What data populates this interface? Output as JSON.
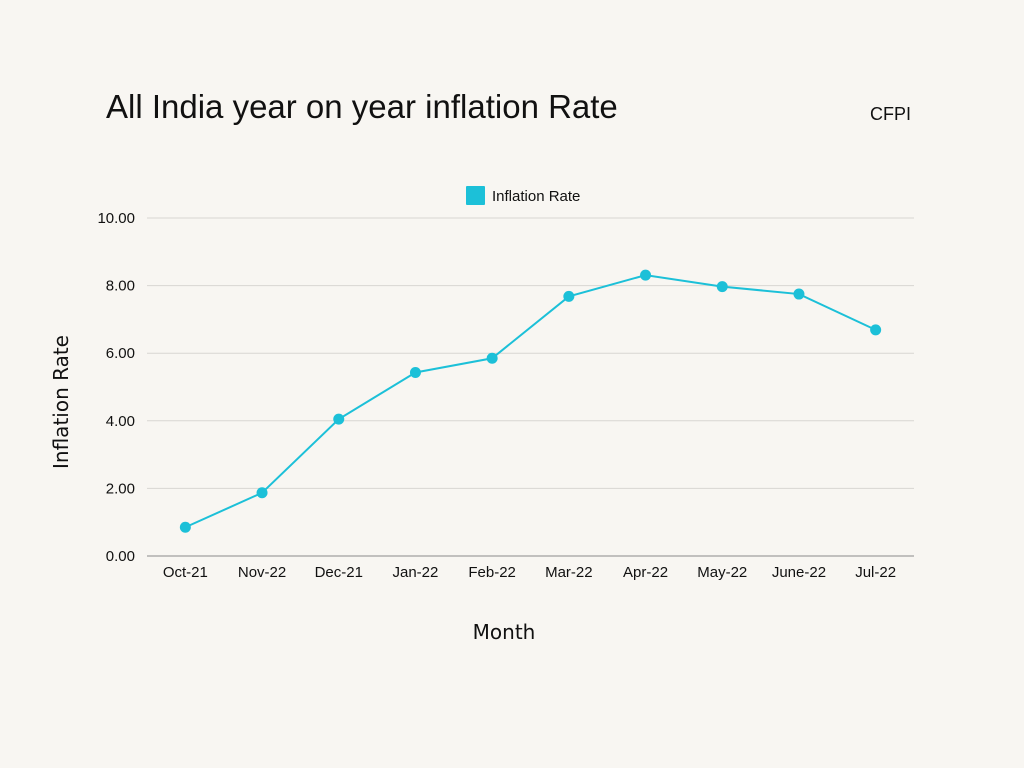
{
  "header": {
    "title": "All India year on year inflation Rate",
    "tag": "CFPI"
  },
  "colors": {
    "background": "#f8f6f2",
    "series": "#1cc0d8",
    "grid": "#d8d6d2",
    "axis": "#8a8a8a"
  },
  "chart_data": {
    "type": "line",
    "title": "All India year on year inflation Rate",
    "xlabel": "Month",
    "ylabel": "Inflation Rate",
    "categories": [
      "Oct-21",
      "Nov-22",
      "Dec-21",
      "Jan-22",
      "Feb-22",
      "Mar-22",
      "Apr-22",
      "May-22",
      "June-22",
      "Jul-22"
    ],
    "series": [
      {
        "name": "Inflation Rate",
        "values": [
          0.85,
          1.87,
          4.05,
          5.43,
          5.85,
          7.68,
          8.31,
          7.97,
          7.75,
          6.69
        ]
      }
    ],
    "ylim": [
      0,
      10
    ],
    "yticks": [
      "0.00",
      "2.00",
      "4.00",
      "6.00",
      "8.00",
      "10.00"
    ],
    "grid": true,
    "legend_position": "top-center"
  }
}
